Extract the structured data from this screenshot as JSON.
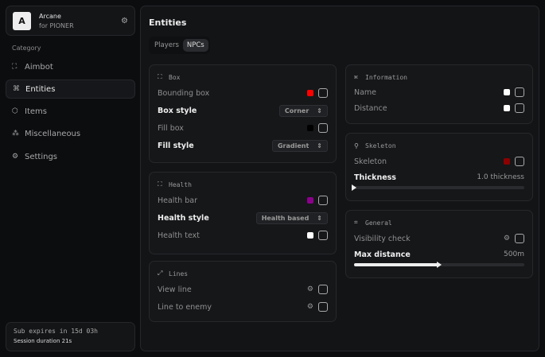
{
  "brand": {
    "logo": "A",
    "name": "Arcane",
    "sub": "for PIONER"
  },
  "sidebar": {
    "category": "Category",
    "items": [
      {
        "label": "Aimbot",
        "icon": "crosshair-icon"
      },
      {
        "label": "Entities",
        "icon": "entity-icon",
        "active": true
      },
      {
        "label": "Items",
        "icon": "box-icon"
      },
      {
        "label": "Miscellaneous",
        "icon": "misc-icon"
      },
      {
        "label": "Settings",
        "icon": "gear-icon"
      }
    ]
  },
  "status": {
    "sub": "Sub expires in 15d 03h",
    "session": "Session duration 21s"
  },
  "main": {
    "title": "Entities",
    "tabs": [
      "Players",
      "NPCs"
    ],
    "active_tab": "NPCs"
  },
  "box": {
    "title": "Box",
    "bounding": "Bounding box",
    "bounding_color": "#ff0000",
    "box_style": "Box style",
    "box_style_value": "Corner",
    "fill_box": "Fill box",
    "fill_color": "#000000",
    "fill_style": "Fill style",
    "fill_style_value": "Gradient"
  },
  "health": {
    "title": "Health",
    "bar": "Health bar",
    "bar_color": "#8b008b",
    "style": "Health style",
    "style_value": "Health based",
    "text": "Health text",
    "text_color": "#ffffff"
  },
  "lines": {
    "title": "Lines",
    "view": "View line",
    "enemy": "Line to enemy"
  },
  "info": {
    "title": "Information",
    "name": "Name",
    "name_color": "#ffffff",
    "distance": "Distance",
    "distance_color": "#ffffff"
  },
  "skeleton": {
    "title": "Skeleton",
    "skeleton": "Skeleton",
    "color": "#8b0000",
    "thickness": "Thickness",
    "thickness_value": "1.0 thickness",
    "thickness_fraction": 0.0
  },
  "general": {
    "title": "General",
    "visibility": "Visibility check",
    "max": "Max distance",
    "max_value": "500m",
    "max_fraction": 0.5
  }
}
